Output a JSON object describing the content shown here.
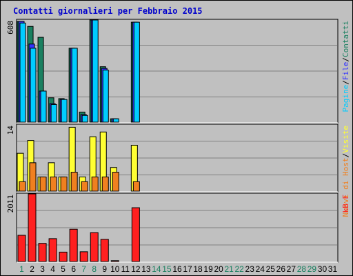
{
  "title": "Contatti giornalieri per Febbraio 2015",
  "colors": {
    "background": "#c0c0c0",
    "pages": "#00ccff",
    "files": "#3333ff",
    "hits": "#1a8060",
    "visits": "#ffff33",
    "hosts": "#f08020",
    "kbytes": "#ff2020",
    "weekday": "#000000",
    "weekend": "#1a8060"
  },
  "chart_data": [
    {
      "type": "bar",
      "panel": "top",
      "max_label": "608",
      "ylim": [
        0,
        608
      ],
      "categories": [
        "1",
        "2",
        "3",
        "4",
        "5",
        "6",
        "7",
        "8",
        "9",
        "10",
        "11",
        "12",
        "13",
        "14",
        "15",
        "16",
        "17",
        "18",
        "19",
        "20",
        "21",
        "22",
        "23",
        "24",
        "25",
        "26",
        "27",
        "28",
        "29",
        "30",
        "31"
      ],
      "right_label": {
        "parts": [
          {
            "text": "Pagine",
            "color": "#00ccff"
          },
          {
            "text": "/",
            "color": "#000000"
          },
          {
            "text": "File",
            "color": "#3333ff"
          },
          {
            "text": "/",
            "color": "#000000"
          },
          {
            "text": "Contatti",
            "color": "#1a8060"
          }
        ]
      },
      "series": [
        {
          "key": "hits",
          "color": "#1a8060",
          "values": [
            600,
            570,
            505,
            145,
            140,
            440,
            60,
            608,
            330,
            20,
            null,
            595,
            null,
            null,
            null,
            null,
            null,
            null,
            null,
            null,
            null,
            null,
            null,
            null,
            null,
            null,
            null,
            null,
            null,
            null,
            null
          ]
        },
        {
          "key": "files",
          "color": "#3333ff",
          "values": [
            600,
            465,
            185,
            110,
            135,
            440,
            45,
            608,
            320,
            20,
            null,
            595,
            null,
            null,
            null,
            null,
            null,
            null,
            null,
            null,
            null,
            null,
            null,
            null,
            null,
            null,
            null,
            null,
            null,
            null,
            null
          ]
        },
        {
          "key": "pages",
          "color": "#00ccff",
          "values": [
            590,
            440,
            185,
            105,
            135,
            440,
            40,
            608,
            310,
            20,
            null,
            595,
            null,
            null,
            null,
            null,
            null,
            null,
            null,
            null,
            null,
            null,
            null,
            null,
            null,
            null,
            null,
            null,
            null,
            null,
            null
          ]
        }
      ]
    },
    {
      "type": "bar",
      "panel": "middle",
      "max_label": "14",
      "ylim": [
        0,
        14
      ],
      "right_label": {
        "parts": [
          {
            "text": "Nuovi di Host",
            "color": "#f08020"
          },
          {
            "text": "/",
            "color": "#000000"
          },
          {
            "text": "Visite",
            "color": "#ffff33"
          }
        ]
      },
      "series": [
        {
          "key": "visits",
          "color": "#ffff33",
          "values": [
            8,
            10.7,
            3,
            6,
            3,
            13.5,
            3,
            11.5,
            12.5,
            5,
            null,
            9.7,
            null,
            null,
            null,
            null,
            null,
            null,
            null,
            null,
            null,
            null,
            null,
            null,
            null,
            null,
            null,
            null,
            null,
            null,
            null
          ]
        },
        {
          "key": "hosts",
          "color": "#f08020",
          "values": [
            2,
            6,
            3,
            3,
            3,
            4,
            2,
            3,
            3,
            4,
            null,
            2,
            null,
            null,
            null,
            null,
            null,
            null,
            null,
            null,
            null,
            null,
            null,
            null,
            null,
            null,
            null,
            null,
            null,
            null,
            null
          ]
        }
      ]
    },
    {
      "type": "bar",
      "panel": "bottom",
      "max_label": "2011",
      "ylim": [
        0,
        2011
      ],
      "right_label": {
        "parts": [
          {
            "text": "kB F",
            "color": "#ff2020"
          }
        ]
      },
      "series": [
        {
          "key": "kbytes",
          "color": "#ff2020",
          "values": [
            780,
            2011,
            540,
            680,
            280,
            960,
            290,
            860,
            660,
            25,
            null,
            1600,
            null,
            null,
            null,
            null,
            null,
            null,
            null,
            null,
            null,
            null,
            null,
            null,
            null,
            null,
            null,
            null,
            null,
            null,
            null
          ]
        }
      ]
    }
  ],
  "days": [
    {
      "label": "1",
      "weekend": true
    },
    {
      "label": "2",
      "weekend": false
    },
    {
      "label": "3",
      "weekend": false
    },
    {
      "label": "4",
      "weekend": false
    },
    {
      "label": "5",
      "weekend": false
    },
    {
      "label": "6",
      "weekend": false
    },
    {
      "label": "7",
      "weekend": true
    },
    {
      "label": "8",
      "weekend": true
    },
    {
      "label": "9",
      "weekend": false
    },
    {
      "label": "10",
      "weekend": false
    },
    {
      "label": "11",
      "weekend": false
    },
    {
      "label": "12",
      "weekend": false
    },
    {
      "label": "13",
      "weekend": false
    },
    {
      "label": "14",
      "weekend": true
    },
    {
      "label": "15",
      "weekend": true
    },
    {
      "label": "16",
      "weekend": false
    },
    {
      "label": "17",
      "weekend": false
    },
    {
      "label": "18",
      "weekend": false
    },
    {
      "label": "19",
      "weekend": false
    },
    {
      "label": "20",
      "weekend": false
    },
    {
      "label": "21",
      "weekend": true
    },
    {
      "label": "22",
      "weekend": true
    },
    {
      "label": "23",
      "weekend": false
    },
    {
      "label": "24",
      "weekend": false
    },
    {
      "label": "25",
      "weekend": false
    },
    {
      "label": "26",
      "weekend": false
    },
    {
      "label": "27",
      "weekend": false
    },
    {
      "label": "28",
      "weekend": true
    },
    {
      "label": "29",
      "weekend": true
    },
    {
      "label": "30",
      "weekend": false
    },
    {
      "label": "31",
      "weekend": false
    }
  ]
}
